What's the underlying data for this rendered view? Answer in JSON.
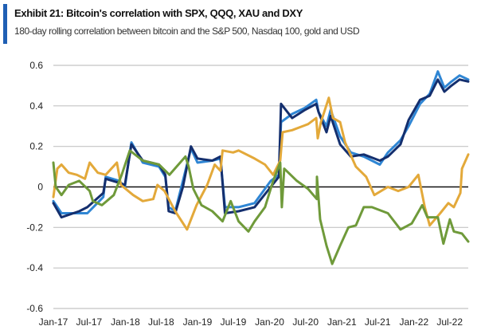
{
  "header": {
    "title": "Exhibit 21: Bitcoin's correlation with SPX, QQQ, XAU and DXY",
    "subtitle": "180-day rolling correlation between bitcoin and the S&P 500, Nasdaq 100, gold and USD",
    "accent_color": "#1f5fb4"
  },
  "chart_data": {
    "type": "line",
    "title": "Exhibit 21: Bitcoin's correlation with SPX, QQQ, XAU and DXY",
    "subtitle": "180-day rolling correlation between bitcoin and the S&P 500, Nasdaq 100, gold and USD",
    "xlabel": "",
    "ylabel": "",
    "ylim": [
      -0.6,
      0.6
    ],
    "yticks": [
      0.6,
      0.4,
      0.2,
      0,
      -0.2,
      -0.4,
      -0.6
    ],
    "ytick_labels": [
      "0.6",
      "0.4",
      "0.2",
      "0",
      "-0.2",
      "-0.4",
      "-0.6"
    ],
    "xlim": [
      "2017-01-01",
      "2022-10-03"
    ],
    "xticks": [
      "2017-01-01",
      "2017-07-01",
      "2018-01-01",
      "2018-07-01",
      "2019-01-01",
      "2019-07-01",
      "2020-01-01",
      "2020-07-01",
      "2021-01-01",
      "2021-07-01",
      "2022-01-01",
      "2022-07-01"
    ],
    "xtick_labels": [
      "Jan-17",
      "Jul-17",
      "Jan-18",
      "Jul-18",
      "Jan-19",
      "Jul-19",
      "Jan-20",
      "Jul-20",
      "Jan-21",
      "Jul-21",
      "Jan-22",
      "Jul-22"
    ],
    "grid": "horizontal",
    "legend": "none",
    "series": [
      {
        "color": "#2f86d4",
        "x": [
          "2017-01-01",
          "2017-02-11",
          "2017-05-12",
          "2017-06-22",
          "2017-09-11",
          "2017-09-23",
          "2017-12-01",
          "2017-12-29",
          "2018-01-31",
          "2018-03-30",
          "2018-06-20",
          "2018-07-22",
          "2018-08-08",
          "2018-09-10",
          "2018-10-19",
          "2018-11-29",
          "2019-01-01",
          "2019-03-17",
          "2019-04-27",
          "2019-05-20",
          "2019-07-28",
          "2019-10-17",
          "2020-01-07",
          "2020-02-17",
          "2020-02-28",
          "2020-04-24",
          "2020-06-28",
          "2020-08-24",
          "2020-09-05",
          "2020-10-15",
          "2020-11-05",
          "2020-12-23",
          "2021-02-15",
          "2021-04-22",
          "2021-07-12",
          "2021-08-22",
          "2021-10-25",
          "2021-12-05",
          "2022-02-01",
          "2022-03-22",
          "2022-05-02",
          "2022-06-04",
          "2022-07-10",
          "2022-08-20",
          "2022-10-03"
        ],
        "y": [
          -0.07,
          -0.13,
          -0.13,
          -0.13,
          -0.05,
          0.05,
          0.03,
          0.0,
          0.22,
          0.12,
          0.1,
          0.05,
          -0.1,
          -0.12,
          0.03,
          0.19,
          0.12,
          0.13,
          0.14,
          -0.1,
          -0.1,
          -0.08,
          0.03,
          0.06,
          0.32,
          0.36,
          0.39,
          0.43,
          0.37,
          0.3,
          0.38,
          0.25,
          0.17,
          0.15,
          0.11,
          0.17,
          0.23,
          0.3,
          0.41,
          0.46,
          0.57,
          0.49,
          0.52,
          0.55,
          0.53
        ]
      },
      {
        "color": "#142f6e",
        "x": [
          "2017-01-01",
          "2017-02-11",
          "2017-05-12",
          "2017-06-22",
          "2017-09-11",
          "2017-09-23",
          "2017-12-01",
          "2017-12-29",
          "2018-01-31",
          "2018-03-30",
          "2018-06-20",
          "2018-07-22",
          "2018-08-08",
          "2018-09-10",
          "2018-10-19",
          "2018-11-29",
          "2019-01-01",
          "2019-03-17",
          "2019-04-27",
          "2019-05-20",
          "2019-07-28",
          "2019-10-17",
          "2020-01-07",
          "2020-02-17",
          "2020-02-28",
          "2020-04-24",
          "2020-06-28",
          "2020-08-24",
          "2020-09-05",
          "2020-10-15",
          "2020-11-05",
          "2020-12-23",
          "2021-02-15",
          "2021-04-22",
          "2021-07-12",
          "2021-08-22",
          "2021-10-25",
          "2021-12-05",
          "2022-02-01",
          "2022-03-22",
          "2022-05-02",
          "2022-06-04",
          "2022-07-10",
          "2022-08-20",
          "2022-10-03"
        ],
        "y": [
          -0.08,
          -0.15,
          -0.12,
          -0.1,
          -0.03,
          0.04,
          0.02,
          0.01,
          0.21,
          0.13,
          0.11,
          0.06,
          -0.12,
          -0.13,
          0.0,
          0.2,
          0.14,
          0.13,
          0.15,
          -0.13,
          -0.12,
          -0.1,
          0.0,
          0.05,
          0.41,
          0.34,
          0.38,
          0.41,
          0.37,
          0.27,
          0.35,
          0.21,
          0.15,
          0.16,
          0.13,
          0.15,
          0.21,
          0.33,
          0.43,
          0.45,
          0.53,
          0.47,
          0.5,
          0.53,
          0.52
        ]
      },
      {
        "color": "#e3a93a",
        "x": [
          "2017-01-01",
          "2017-01-21",
          "2017-02-11",
          "2017-03-20",
          "2017-04-30",
          "2017-06-10",
          "2017-07-04",
          "2017-08-14",
          "2017-09-23",
          "2017-11-19",
          "2017-12-09",
          "2018-02-09",
          "2018-03-30",
          "2018-05-22",
          "2018-06-12",
          "2018-07-18",
          "2018-09-10",
          "2018-11-09",
          "2018-12-27",
          "2019-02-19",
          "2019-03-29",
          "2019-04-27",
          "2019-05-08",
          "2019-06-30",
          "2019-07-28",
          "2019-10-17",
          "2019-12-09",
          "2020-01-19",
          "2020-02-24",
          "2020-03-07",
          "2020-04-24",
          "2020-07-14",
          "2020-08-24",
          "2020-09-01",
          "2020-09-17",
          "2020-10-27",
          "2020-11-17",
          "2020-12-23",
          "2021-01-17",
          "2021-03-13",
          "2021-05-04",
          "2021-06-14",
          "2021-08-22",
          "2021-10-13",
          "2021-12-05",
          "2022-01-23",
          "2022-02-25",
          "2022-03-22",
          "2022-05-14",
          "2022-06-24",
          "2022-07-22",
          "2022-08-24",
          "2022-09-01",
          "2022-10-03"
        ],
        "y": [
          -0.05,
          0.09,
          0.11,
          0.07,
          0.06,
          0.04,
          0.12,
          0.07,
          0.06,
          0.12,
          0.01,
          -0.04,
          -0.07,
          -0.06,
          0.01,
          -0.02,
          -0.12,
          -0.21,
          -0.09,
          0.01,
          0.11,
          0.08,
          0.18,
          0.17,
          0.18,
          0.14,
          0.11,
          0.06,
          0.13,
          0.27,
          0.28,
          0.31,
          0.34,
          0.24,
          0.32,
          0.44,
          0.34,
          0.32,
          0.22,
          0.1,
          0.05,
          -0.04,
          0.0,
          -0.02,
          0.0,
          0.06,
          -0.1,
          -0.19,
          -0.13,
          -0.08,
          -0.1,
          -0.03,
          0.09,
          0.16
        ]
      },
      {
        "color": "#6f9a3a",
        "x": [
          "2017-01-01",
          "2017-01-13",
          "2017-02-11",
          "2017-03-20",
          "2017-05-12",
          "2017-07-04",
          "2017-07-20",
          "2017-09-04",
          "2017-11-03",
          "2017-12-13",
          "2018-01-23",
          "2018-03-30",
          "2018-06-20",
          "2018-08-12",
          "2018-11-01",
          "2018-11-17",
          "2018-12-11",
          "2019-01-21",
          "2019-03-17",
          "2019-05-08",
          "2019-06-18",
          "2019-07-28",
          "2019-09-16",
          "2019-10-17",
          "2019-12-09",
          "2020-01-19",
          "2020-02-24",
          "2020-03-03",
          "2020-03-15",
          "2020-05-18",
          "2020-07-14",
          "2020-08-27",
          "2020-08-28",
          "2020-09-13",
          "2020-10-15",
          "2020-11-13",
          "2020-12-23",
          "2021-02-03",
          "2021-03-13",
          "2021-04-22",
          "2021-06-02",
          "2021-08-22",
          "2021-10-25",
          "2021-12-21",
          "2022-02-12",
          "2022-03-10",
          "2022-05-02",
          "2022-05-30",
          "2022-07-02",
          "2022-07-22",
          "2022-09-01",
          "2022-10-03"
        ],
        "y": [
          0.12,
          0.0,
          -0.04,
          0.01,
          0.03,
          -0.02,
          -0.07,
          -0.09,
          -0.04,
          0.06,
          0.18,
          0.13,
          0.11,
          0.06,
          0.15,
          0.1,
          -0.01,
          -0.09,
          -0.12,
          -0.17,
          -0.07,
          -0.17,
          -0.22,
          -0.17,
          -0.1,
          0.03,
          0.12,
          -0.1,
          0.09,
          0.03,
          -0.01,
          -0.06,
          0.05,
          -0.16,
          -0.29,
          -0.38,
          -0.29,
          -0.2,
          -0.19,
          -0.1,
          -0.1,
          -0.13,
          -0.21,
          -0.18,
          -0.09,
          -0.15,
          -0.15,
          -0.28,
          -0.16,
          -0.22,
          -0.23,
          -0.27
        ]
      }
    ]
  }
}
